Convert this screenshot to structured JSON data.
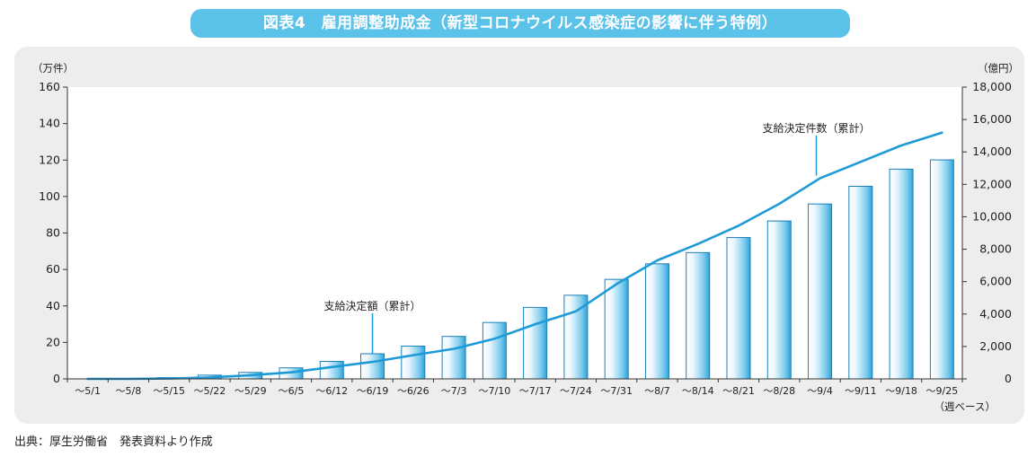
{
  "chart_data": {
    "type": "bar",
    "title": "図表4　雇用調整助成金（新型コロナウイルス感染症の影響に伴う特例）",
    "left_axis_unit": "（万件）",
    "right_axis_unit": "（億円）",
    "x_axis_note": "（週ベース）",
    "left_ylim": [
      0,
      160
    ],
    "right_ylim": [
      0,
      18000
    ],
    "left_ticks": [
      "0",
      "20",
      "40",
      "60",
      "80",
      "100",
      "120",
      "140",
      "160"
    ],
    "right_ticks": [
      "0",
      "2,000",
      "4,000",
      "6,000",
      "8,000",
      "10,000",
      "12,000",
      "14,000",
      "16,000",
      "18,000"
    ],
    "categories": [
      "～5/1",
      "～5/8",
      "～5/15",
      "～5/22",
      "～5/29",
      "～6/5",
      "～6/12",
      "～6/19",
      "～6/26",
      "～7/3",
      "～7/10",
      "～7/17",
      "～7/24",
      "～7/31",
      "～8/7",
      "～8/14",
      "～8/21",
      "～8/28",
      "～9/4",
      "～9/11",
      "～9/18",
      "～9/25"
    ],
    "series": [
      {
        "name": "支給決定額（累計）",
        "type": "bar",
        "axis": "right",
        "values": [
          0,
          0,
          80,
          230,
          400,
          680,
          1080,
          1550,
          2020,
          2620,
          3480,
          4410,
          5160,
          6140,
          7100,
          7790,
          8720,
          9740,
          10790,
          11880,
          12940,
          13510
        ]
      },
      {
        "name": "支給決定件数（累計）",
        "type": "line",
        "axis": "left",
        "values": [
          0,
          0,
          0.2,
          0.8,
          2.0,
          3.6,
          6.5,
          9.3,
          13.0,
          16.5,
          22.0,
          30.0,
          37.0,
          52.0,
          65.0,
          74.0,
          84.0,
          96.0,
          110.0,
          119.0,
          128.0,
          135.0
        ]
      }
    ],
    "annotations": [
      {
        "text": "支給決定額（累計）",
        "series": 0,
        "at_index": 7
      },
      {
        "text": "支給決定件数（累計）",
        "series": 1,
        "at_index": 18
      }
    ],
    "grid": false,
    "legend": "none"
  },
  "colors": {
    "title_bg": "#5bc2ea",
    "panel_bg": "#ededed",
    "plot_bg": "#ffffff",
    "bar_edge": "#1b7fb8",
    "bar_light": "#e9f6fd",
    "bar_dark": "#2fa3da",
    "line": "#1e9bd7",
    "axis": "#333333"
  },
  "source": "出典：厚生労働省　発表資料より作成"
}
